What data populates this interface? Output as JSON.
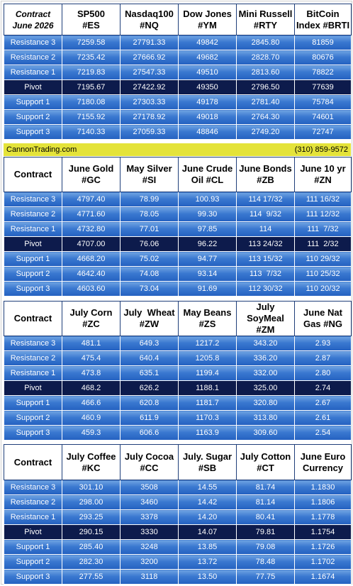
{
  "sections": [
    {
      "headers": [
        [
          "Contract",
          "June 2026"
        ],
        [
          "SP500",
          "#ES"
        ],
        [
          "Nasdaq100",
          "#NQ"
        ],
        [
          "Dow Jones",
          "#YM"
        ],
        [
          "Mini Russell",
          "#RTY"
        ],
        [
          "BitCoin",
          "Index #BRTI"
        ]
      ],
      "rows": [
        {
          "label": "Resistance 3",
          "values": [
            "7259.58",
            "27791.33",
            "49842",
            "2845.80",
            "81859"
          ]
        },
        {
          "label": "Resistance 2",
          "values": [
            "7235.42",
            "27666.92",
            "49682",
            "2828.70",
            "80676"
          ]
        },
        {
          "label": "Resistance 1",
          "values": [
            "7219.83",
            "27547.33",
            "49510",
            "2813.60",
            "78822"
          ]
        },
        {
          "label": "Pivot",
          "values": [
            "7195.67",
            "27422.92",
            "49350",
            "2796.50",
            "77639"
          ]
        },
        {
          "label": "Support 1",
          "values": [
            "7180.08",
            "27303.33",
            "49178",
            "2781.40",
            "75784"
          ]
        },
        {
          "label": "Support 2",
          "values": [
            "7155.92",
            "27178.92",
            "49018",
            "2764.30",
            "74601"
          ]
        },
        {
          "label": "Support 3",
          "values": [
            "7140.33",
            "27059.33",
            "48846",
            "2749.20",
            "72747"
          ]
        }
      ]
    },
    {
      "headers": [
        [
          "Contract"
        ],
        [
          "June Gold",
          "#GC"
        ],
        [
          "May Silver",
          "#SI"
        ],
        [
          "June Crude",
          "Oil #CL"
        ],
        [
          "June Bonds",
          "#ZB"
        ],
        [
          "June 10 yr",
          "#ZN"
        ]
      ],
      "rows": [
        {
          "label": "Resistance 3",
          "values": [
            "4797.40",
            "78.99",
            "100.93",
            "114 17/32",
            "111 16/32"
          ]
        },
        {
          "label": "Resistance 2",
          "values": [
            "4771.60",
            "78.05",
            "99.30",
            "114  9/32",
            "111 12/32"
          ]
        },
        {
          "label": "Resistance 1",
          "values": [
            "4732.80",
            "77.01",
            "97.85",
            "114",
            "111  7/32"
          ]
        },
        {
          "label": "Pivot",
          "values": [
            "4707.00",
            "76.06",
            "96.22",
            "113 24/32",
            "111  2/32"
          ]
        },
        {
          "label": "Support 1",
          "values": [
            "4668.20",
            "75.02",
            "94.77",
            "113 15/32",
            "110 29/32"
          ]
        },
        {
          "label": "Support 2",
          "values": [
            "4642.40",
            "74.08",
            "93.14",
            "113  7/32",
            "110 25/32"
          ]
        },
        {
          "label": "Support 3",
          "values": [
            "4603.60",
            "73.04",
            "91.69",
            "112 30/32",
            "110 20/32"
          ]
        }
      ]
    },
    {
      "headers": [
        [
          "Contract"
        ],
        [
          "July Corn",
          "#ZC"
        ],
        [
          "July  Wheat",
          "#ZW"
        ],
        [
          "May Beans",
          "#ZS"
        ],
        [
          "July",
          "SoyMeal",
          "#ZM"
        ],
        [
          "June Nat",
          "Gas #NG"
        ]
      ],
      "rows": [
        {
          "label": "Resistance 3",
          "values": [
            "481.1",
            "649.3",
            "1217.2",
            "343.20",
            "2.93"
          ]
        },
        {
          "label": "Resistance 2",
          "values": [
            "475.4",
            "640.4",
            "1205.8",
            "336.20",
            "2.87"
          ]
        },
        {
          "label": "Resistance 1",
          "values": [
            "473.8",
            "635.1",
            "1199.4",
            "332.00",
            "2.80"
          ]
        },
        {
          "label": "Pivot",
          "values": [
            "468.2",
            "626.2",
            "1188.1",
            "325.00",
            "2.74"
          ]
        },
        {
          "label": "Support 1",
          "values": [
            "466.6",
            "620.8",
            "1181.7",
            "320.80",
            "2.67"
          ]
        },
        {
          "label": "Support 2",
          "values": [
            "460.9",
            "611.9",
            "1170.3",
            "313.80",
            "2.61"
          ]
        },
        {
          "label": "Support 3",
          "values": [
            "459.3",
            "606.6",
            "1163.9",
            "309.60",
            "2.54"
          ]
        }
      ]
    },
    {
      "headers": [
        [
          "Contract"
        ],
        [
          "July Coffee",
          "#KC"
        ],
        [
          "July Cocoa",
          "#CC"
        ],
        [
          "July. Sugar",
          "#SB"
        ],
        [
          "July Cotton",
          "#CT"
        ],
        [
          "June Euro",
          "Currency"
        ]
      ],
      "rows": [
        {
          "label": "Resistance 3",
          "values": [
            "301.10",
            "3508",
            "14.55",
            "81.74",
            "1.1830"
          ]
        },
        {
          "label": "Resistance 2",
          "values": [
            "298.00",
            "3460",
            "14.42",
            "81.14",
            "1.1806"
          ]
        },
        {
          "label": "Resistance 1",
          "values": [
            "293.25",
            "3378",
            "14.20",
            "80.41",
            "1.1778"
          ]
        },
        {
          "label": "Pivot",
          "values": [
            "290.15",
            "3330",
            "14.07",
            "79.81",
            "1.1754"
          ]
        },
        {
          "label": "Support 1",
          "values": [
            "285.40",
            "3248",
            "13.85",
            "79.08",
            "1.1726"
          ]
        },
        {
          "label": "Support 2",
          "values": [
            "282.30",
            "3200",
            "13.72",
            "78.48",
            "1.1702"
          ]
        },
        {
          "label": "Support 3",
          "values": [
            "277.55",
            "3118",
            "13.50",
            "77.75",
            "1.1674"
          ]
        }
      ]
    }
  ],
  "banner": {
    "site": "CannonTrading.com",
    "phone": "(310) 859-9572"
  },
  "colors": {
    "row_blue": "#3a78d0",
    "pivot_navy": "#0d1b4c",
    "banner_yellow": "#e4e33a"
  }
}
